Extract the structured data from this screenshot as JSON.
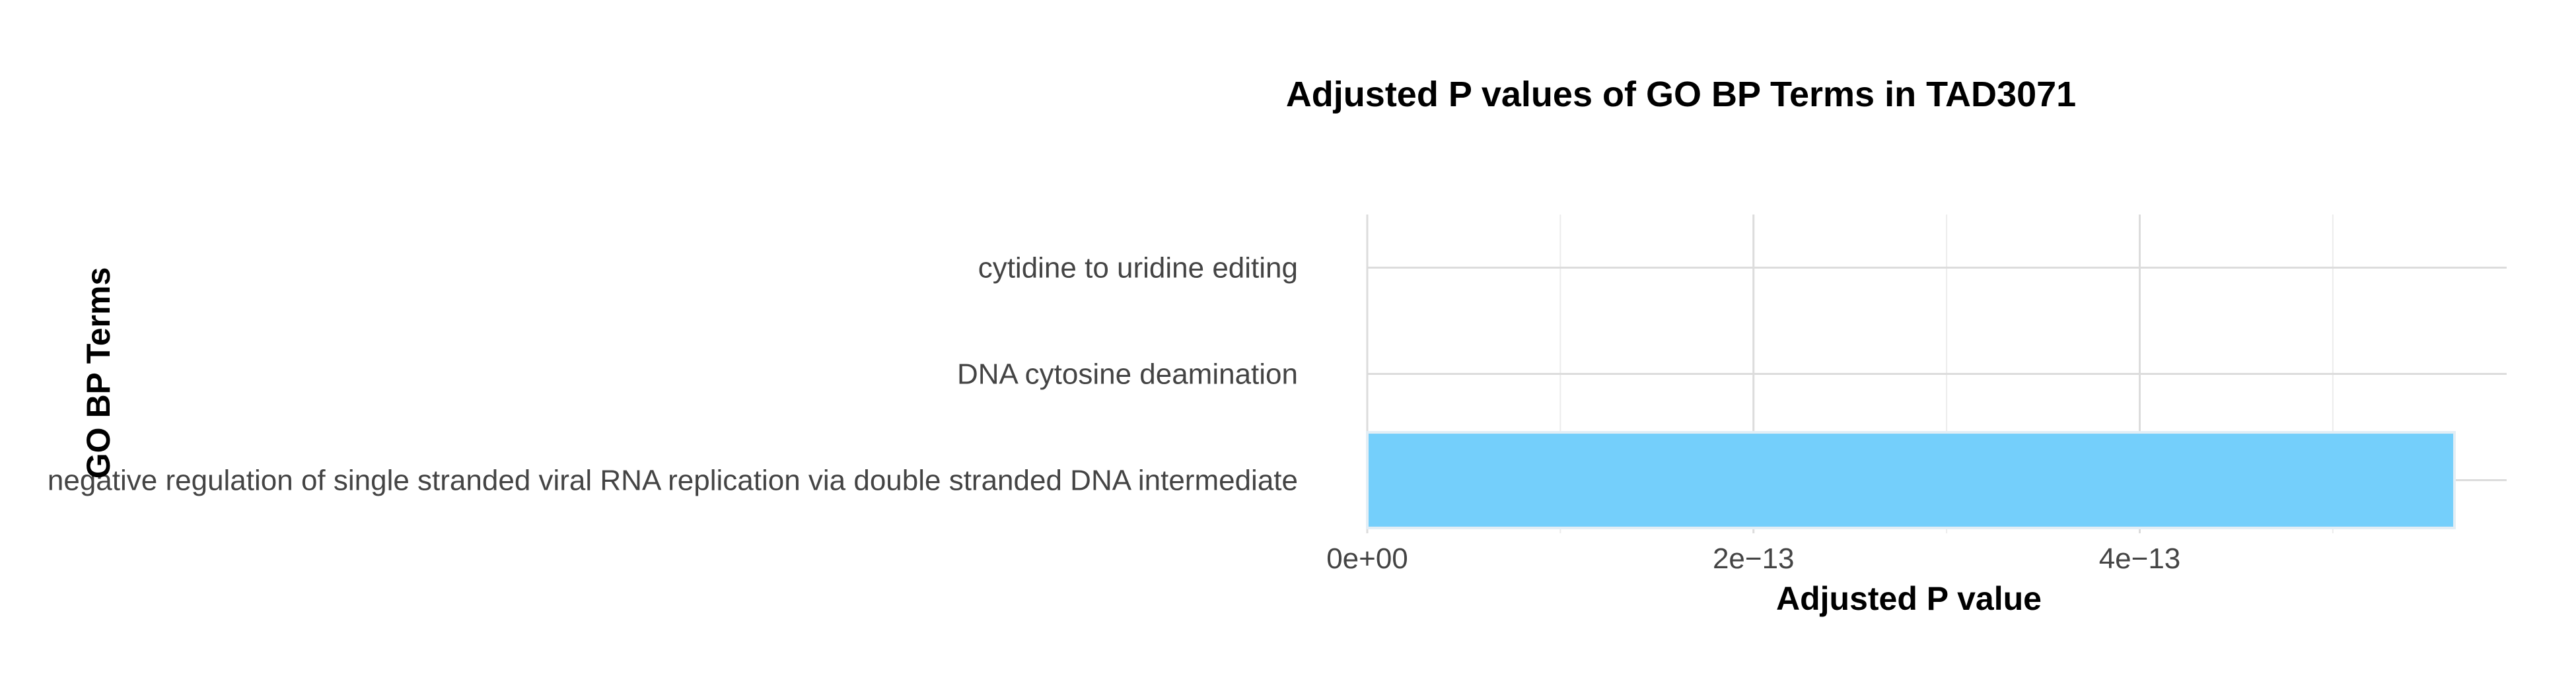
{
  "chart_data": {
    "type": "bar",
    "orientation": "horizontal",
    "title": "Adjusted P values of GO BP Terms in TAD3071",
    "xlabel": "Adjusted P value",
    "ylabel": "GO BP Terms",
    "categories": [
      "negative regulation of single stranded viral RNA replication via double stranded DNA intermediate",
      "DNA cytosine deamination",
      "cytidine to uridine editing"
    ],
    "values": [
      5.63e-13,
      0,
      0
    ],
    "xlim": [
      0,
      5.9e-13
    ],
    "x_ticks": [
      0,
      2e-13,
      4e-13
    ],
    "x_tick_labels": [
      "0e+00",
      "2e−13",
      "4e−13"
    ],
    "x_minor_ticks": [
      1e-13,
      3e-13,
      5e-13
    ],
    "grid": true,
    "legend": "none",
    "bar_color": "#74CFFB",
    "bar_outline": "#e3eef5"
  }
}
